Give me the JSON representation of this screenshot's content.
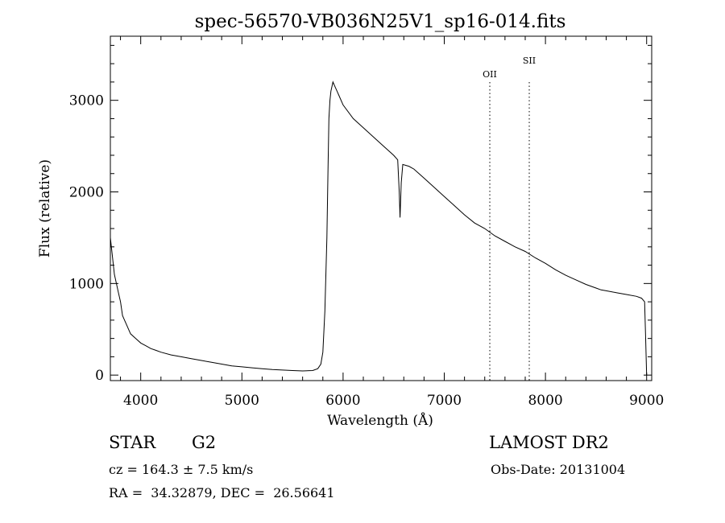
{
  "chart_data": {
    "type": "line",
    "title": "spec-56570-VB036N25V1_sp16-014.fits",
    "xlabel": "Wavelength (Å)",
    "ylabel": "Flux (relative)",
    "xlim": [
      3700,
      9050
    ],
    "ylim": [
      -60,
      3700
    ],
    "x_ticks": [
      4000,
      5000,
      6000,
      7000,
      8000,
      9000
    ],
    "y_ticks": [
      0,
      1000,
      2000,
      3000
    ],
    "x_tick_labels": [
      "4000",
      "5000",
      "6000",
      "7000",
      "8000",
      "9000"
    ],
    "y_tick_labels": [
      "0",
      "1000",
      "2000",
      "3000"
    ],
    "grid": false,
    "series": [
      {
        "x": [
          3700,
          3720,
          3740,
          3760,
          3780,
          3800,
          3820,
          3840,
          3860,
          3880,
          3900,
          3950,
          4000,
          4050,
          4100,
          4150,
          4200,
          4300,
          4400,
          4500,
          4600,
          4700,
          4800,
          4900,
          5000,
          5100,
          5200,
          5300,
          5400,
          5500,
          5600,
          5700,
          5750,
          5780,
          5800,
          5820,
          5840,
          5850,
          5860,
          5870,
          5880,
          5900,
          5920,
          5940,
          5960,
          6000,
          6100,
          6200,
          6300,
          6400,
          6500,
          6540,
          6555,
          6563,
          6575,
          6590,
          6650,
          6700,
          6800,
          6900,
          7000,
          7100,
          7200,
          7300,
          7400,
          7500,
          7600,
          7700,
          7800,
          7900,
          8000,
          8100,
          8200,
          8300,
          8400,
          8500,
          8550,
          8600,
          8700,
          8800,
          8900,
          8950,
          8980,
          8990,
          9000
        ],
        "y": [
          1500,
          1300,
          1100,
          1000,
          900,
          800,
          650,
          600,
          550,
          500,
          450,
          400,
          350,
          320,
          290,
          270,
          250,
          220,
          200,
          180,
          160,
          140,
          120,
          100,
          90,
          80,
          70,
          60,
          55,
          50,
          45,
          50,
          70,
          120,
          250,
          700,
          1500,
          2200,
          2800,
          3000,
          3100,
          3200,
          3150,
          3100,
          3050,
          2950,
          2800,
          2700,
          2600,
          2500,
          2400,
          2350,
          2000,
          1720,
          2100,
          2300,
          2280,
          2250,
          2150,
          2050,
          1950,
          1850,
          1750,
          1660,
          1600,
          1520,
          1460,
          1400,
          1350,
          1280,
          1220,
          1150,
          1090,
          1040,
          990,
          950,
          930,
          920,
          900,
          880,
          860,
          840,
          800,
          400,
          0
        ]
      }
    ],
    "annotations": [
      {
        "label": "OII",
        "x": 7450
      },
      {
        "label": "SII",
        "x": 7840
      }
    ]
  },
  "info": {
    "object_type": "STAR",
    "subclass": "G2",
    "survey": "LAMOST DR2",
    "cz": "cz = 164.3 ± 7.5 km/s",
    "obs_date": "Obs-Date: 20131004",
    "coords": "RA =  34.32879, DEC =  26.56641"
  }
}
